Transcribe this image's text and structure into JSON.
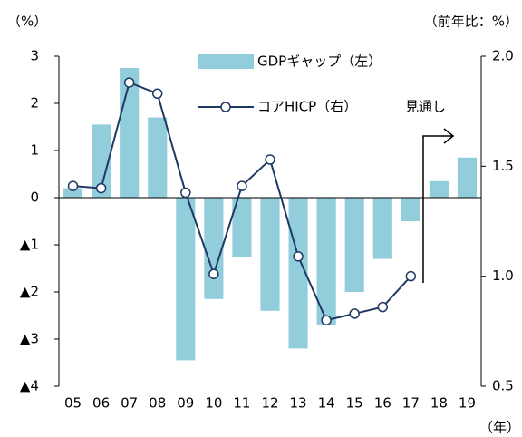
{
  "chart_data": {
    "type": "bar",
    "y_label": "（%）",
    "y2_label": "（前年比：%）",
    "x_label": "（年）",
    "annotation": "見通し",
    "categories": [
      "05",
      "06",
      "07",
      "08",
      "09",
      "10",
      "11",
      "12",
      "13",
      "14",
      "15",
      "16",
      "17",
      "18",
      "19"
    ],
    "series": [
      {
        "name": "GDPギャップ（左）",
        "type": "bar",
        "axis": "y",
        "color": "#92cddc",
        "values": [
          0.2,
          1.55,
          2.75,
          1.7,
          -3.45,
          -2.15,
          -1.25,
          -2.4,
          -3.2,
          -2.7,
          -2.0,
          -1.3,
          -0.5,
          0.35,
          0.85
        ]
      },
      {
        "name": "コアHICP（右）",
        "type": "line",
        "axis": "y2",
        "color": "#1f3864",
        "values": [
          1.41,
          1.4,
          1.88,
          1.83,
          1.38,
          1.01,
          1.41,
          1.53,
          1.09,
          0.8,
          0.83,
          0.86,
          1.0,
          null,
          null
        ]
      }
    ],
    "ylim": [
      -4,
      3
    ],
    "yticks": [
      3,
      2,
      1,
      0,
      {
        "value": -1,
        "label": "▲1"
      },
      {
        "value": -2,
        "label": "▲2"
      },
      {
        "value": -3,
        "label": "▲3"
      },
      {
        "value": -4,
        "label": "▲4"
      }
    ],
    "y2lim": [
      0.5,
      2.0
    ],
    "y2ticks": [
      {
        "value": 2.0,
        "label": "2.0"
      },
      {
        "value": 1.5,
        "label": "1.5"
      },
      {
        "value": 1.0,
        "label": "1.0"
      },
      {
        "value": 0.5,
        "label": "0.5"
      }
    ]
  }
}
